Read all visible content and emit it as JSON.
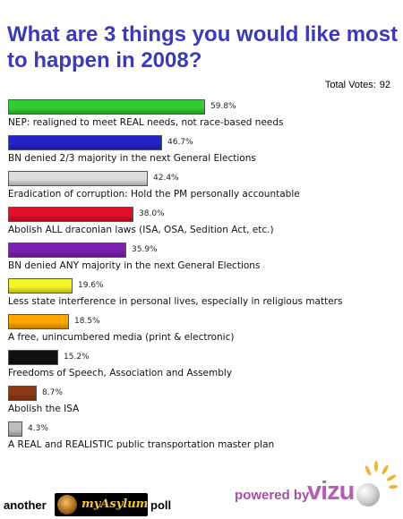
{
  "poll": {
    "title": "What are 3 things you would like most to happen in 2008?",
    "total_votes_label": "Total Votes:",
    "total_votes": "92"
  },
  "chart_data": {
    "type": "bar",
    "orientation": "horizontal",
    "title": "What are 3 things you would like most to happen in 2008?",
    "xlim": [
      0,
      100
    ],
    "grid": false,
    "categories": [
      "NEP: realigned to meet REAL needs, not race-based needs",
      "BN denied 2/3 majority in the next General Elections",
      "Eradication of corruption: Hold the PM personally accountable",
      "Abolish ALL draconian laws (ISA, OSA, Sedition Act, etc.)",
      "BN denied ANY majority in the next General Elections",
      "Less state interference in personal lives, especially in religious matters",
      "A free, unincumbered media (print & electronic)",
      "Freedoms of Speech, Association and Assembly",
      "Abolish the ISA",
      "A REAL and REALISTIC public transportation master plan"
    ],
    "values": [
      59.8,
      46.7,
      42.4,
      38.0,
      35.9,
      19.6,
      18.5,
      15.2,
      8.7,
      4.3
    ],
    "value_labels": [
      "59.8%",
      "46.7%",
      "42.4%",
      "38.0%",
      "35.9%",
      "19.6%",
      "18.5%",
      "15.2%",
      "8.7%",
      "4.3%"
    ],
    "colors": [
      "#33cc33",
      "#2424c8",
      "#dcdcdc",
      "#e0102a",
      "#7d1fb0",
      "#f5f52a",
      "#ffa500",
      "#111111",
      "#8b3a14",
      "#bdbdbd"
    ]
  },
  "footer": {
    "another": "another",
    "logo_text": "myAsylum",
    "poll_word": "poll",
    "powered_by": "powered by",
    "brand": "vizu"
  }
}
